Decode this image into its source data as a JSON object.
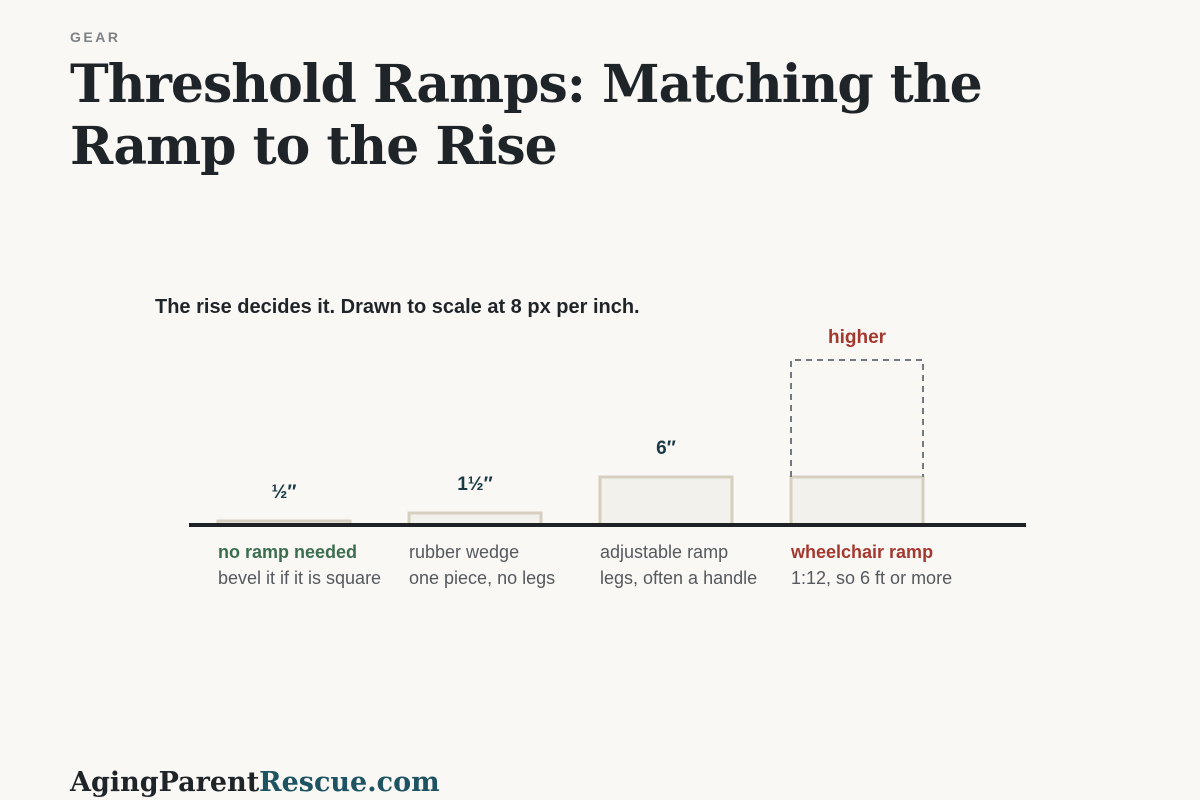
{
  "kicker": "GEAR",
  "title": "Threshold Ramps: Matching the Ramp to the Rise",
  "brand": {
    "name": "AgingParent",
    "accent": "Rescue.com"
  },
  "colors": {
    "background": "#faf8f5",
    "text": "#1f2429",
    "muted": "#55595d",
    "green": "#3b6e4f",
    "red": "#a5382e",
    "navy": "#1b3a47",
    "block_fill": "#f3f1ec",
    "block_stroke": "#d6cfbe",
    "ground": "#1f2224",
    "dashed": "#727a80",
    "brand_accent": "#1e5361"
  },
  "chart_data": {
    "type": "bar",
    "title": "The rise decides it. Drawn to scale at 8 px per inch.",
    "scale_px_per_inch": 8,
    "unit": "inch",
    "categories": [
      "no ramp needed",
      "rubber wedge",
      "adjustable ramp",
      "wheelchair ramp"
    ],
    "values": [
      0.5,
      1.5,
      6,
      6
    ],
    "value_labels": [
      "½″",
      "1½″",
      "6″",
      "higher"
    ],
    "notes": [
      "bevel it if it is square",
      "one piece, no legs",
      "legs, often a handle",
      "1:12, so 6 ft or more"
    ],
    "emphasis": [
      "green",
      "none",
      "none",
      "red"
    ],
    "open_ended": [
      false,
      false,
      false,
      true
    ]
  }
}
